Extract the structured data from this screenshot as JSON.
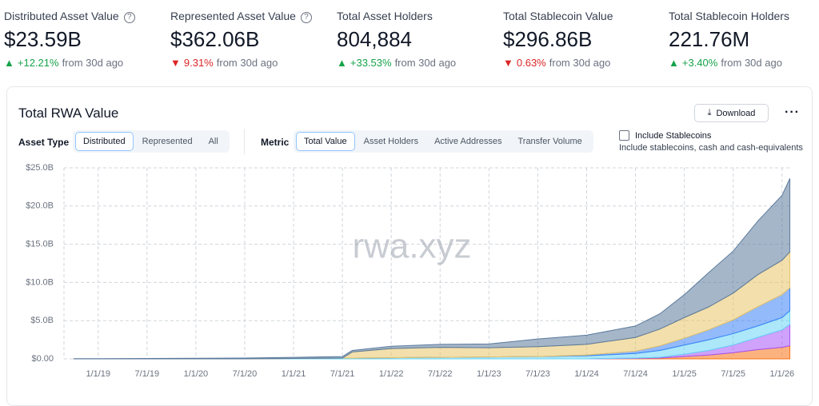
{
  "stats": [
    {
      "label": "Distributed Asset Value",
      "value": "$23.59B",
      "arrow": "▲",
      "change": "+12.21%",
      "period": "from 30d ago",
      "color": "#16a34a",
      "help": "?"
    },
    {
      "label": "Represented Asset Value",
      "value": "$362.06B",
      "arrow": "▼",
      "change": "9.31%",
      "period": "from 30d ago",
      "color": "#dc2626",
      "help": "?"
    },
    {
      "label": "Total Asset Holders",
      "value": "804,884",
      "arrow": "▲",
      "change": "+33.53%",
      "period": "from 30d ago",
      "color": "#16a34a"
    },
    {
      "label": "Total Stablecoin Value",
      "value": "$296.86B",
      "arrow": "▼",
      "change": "0.63%",
      "period": "from 30d ago",
      "color": "#dc2626"
    },
    {
      "label": "Total Stablecoin Holders",
      "value": "221.76M",
      "arrow": "▲",
      "change": "+3.40%",
      "period": "from 30d ago",
      "color": "#16a34a"
    }
  ],
  "panel": {
    "title": "Total RWA Value",
    "download": "Download",
    "asset_type": {
      "label": "Asset Type",
      "options": [
        "Distributed",
        "Represented",
        "All"
      ],
      "selected": 0
    },
    "metric": {
      "label": "Metric",
      "options": [
        "Total Value",
        "Asset Holders",
        "Active Addresses",
        "Transfer Volume"
      ],
      "selected": 0
    },
    "stablecoins": {
      "label": "Include Stablecoins",
      "note": "Include stablecoins, cash and cash-equivalents"
    }
  },
  "chart": {
    "type": "stacked-area",
    "watermark": "rwa.xyz",
    "x": [
      2018.75,
      2019,
      2019.5,
      2020,
      2020.5,
      2021,
      2021.5,
      2021.6,
      2022,
      2022.5,
      2023,
      2023.5,
      2024,
      2024.5,
      2024.75,
      2025,
      2025.25,
      2025.5,
      2025.75,
      2026,
      2026.08
    ],
    "xlim": [
      2018.65,
      2026.1
    ],
    "xticks": [
      {
        "value": 2019,
        "label": "1/1/19"
      },
      {
        "value": 2019.5,
        "label": "7/1/19"
      },
      {
        "value": 2020,
        "label": "1/1/20"
      },
      {
        "value": 2020.5,
        "label": "7/1/20"
      },
      {
        "value": 2021,
        "label": "1/1/21"
      },
      {
        "value": 2021.5,
        "label": "7/1/21"
      },
      {
        "value": 2022,
        "label": "1/1/22"
      },
      {
        "value": 2022.5,
        "label": "7/1/22"
      },
      {
        "value": 2023,
        "label": "1/1/23"
      },
      {
        "value": 2023.5,
        "label": "7/1/23"
      },
      {
        "value": 2024,
        "label": "1/1/24"
      },
      {
        "value": 2024.5,
        "label": "7/1/24"
      },
      {
        "value": 2025,
        "label": "1/1/25"
      },
      {
        "value": 2025.5,
        "label": "7/1/25"
      },
      {
        "value": 2026,
        "label": "1/1/26"
      }
    ],
    "ylim": [
      0,
      25
    ],
    "yticks": [
      {
        "value": 0,
        "label": "$0.00"
      },
      {
        "value": 5,
        "label": "$5.0B"
      },
      {
        "value": 10,
        "label": "$10.0B"
      },
      {
        "value": 15,
        "label": "$15.0B"
      },
      {
        "value": 20,
        "label": "$20.0B"
      },
      {
        "value": 25,
        "label": "$25.0B"
      }
    ],
    "grid": true,
    "series": [
      {
        "color": "#f97316",
        "values": [
          0,
          0,
          0,
          0,
          0,
          0,
          0,
          0,
          0,
          0,
          0,
          0,
          0,
          0.05,
          0.1,
          0.3,
          0.5,
          0.8,
          1.2,
          1.5,
          1.7
        ]
      },
      {
        "color": "#a855f7",
        "values": [
          0,
          0,
          0,
          0,
          0,
          0,
          0,
          0,
          0,
          0,
          0,
          0,
          0,
          0.05,
          0.1,
          0.3,
          0.6,
          1.0,
          1.6,
          2.3,
          2.8
        ]
      },
      {
        "color": "#67d4f5",
        "values": [
          0,
          0,
          0,
          0,
          0,
          0.05,
          0.1,
          0.1,
          0.15,
          0.2,
          0.25,
          0.3,
          0.4,
          0.6,
          0.9,
          1.2,
          1.4,
          1.5,
          1.5,
          1.6,
          1.8
        ]
      },
      {
        "color": "#3b82f6",
        "values": [
          0,
          0,
          0,
          0,
          0,
          0,
          0,
          0,
          0,
          0,
          0,
          0,
          0.1,
          0.3,
          0.6,
          0.9,
          1.3,
          1.8,
          2.5,
          3.0,
          3.0
        ]
      },
      {
        "color": "#e8c468",
        "values": [
          0,
          0,
          0,
          0,
          0,
          0,
          0,
          0.8,
          1.2,
          1.3,
          1.2,
          1.3,
          1.4,
          1.8,
          2.2,
          2.7,
          3.0,
          3.5,
          4.2,
          4.5,
          4.7
        ]
      },
      {
        "color": "#5b7a9c",
        "values": [
          0.02,
          0.03,
          0.05,
          0.08,
          0.1,
          0.15,
          0.2,
          0.2,
          0.3,
          0.4,
          0.5,
          1.0,
          1.2,
          1.5,
          2.0,
          3.0,
          4.5,
          5.5,
          7.0,
          8.5,
          9.6
        ]
      }
    ]
  }
}
